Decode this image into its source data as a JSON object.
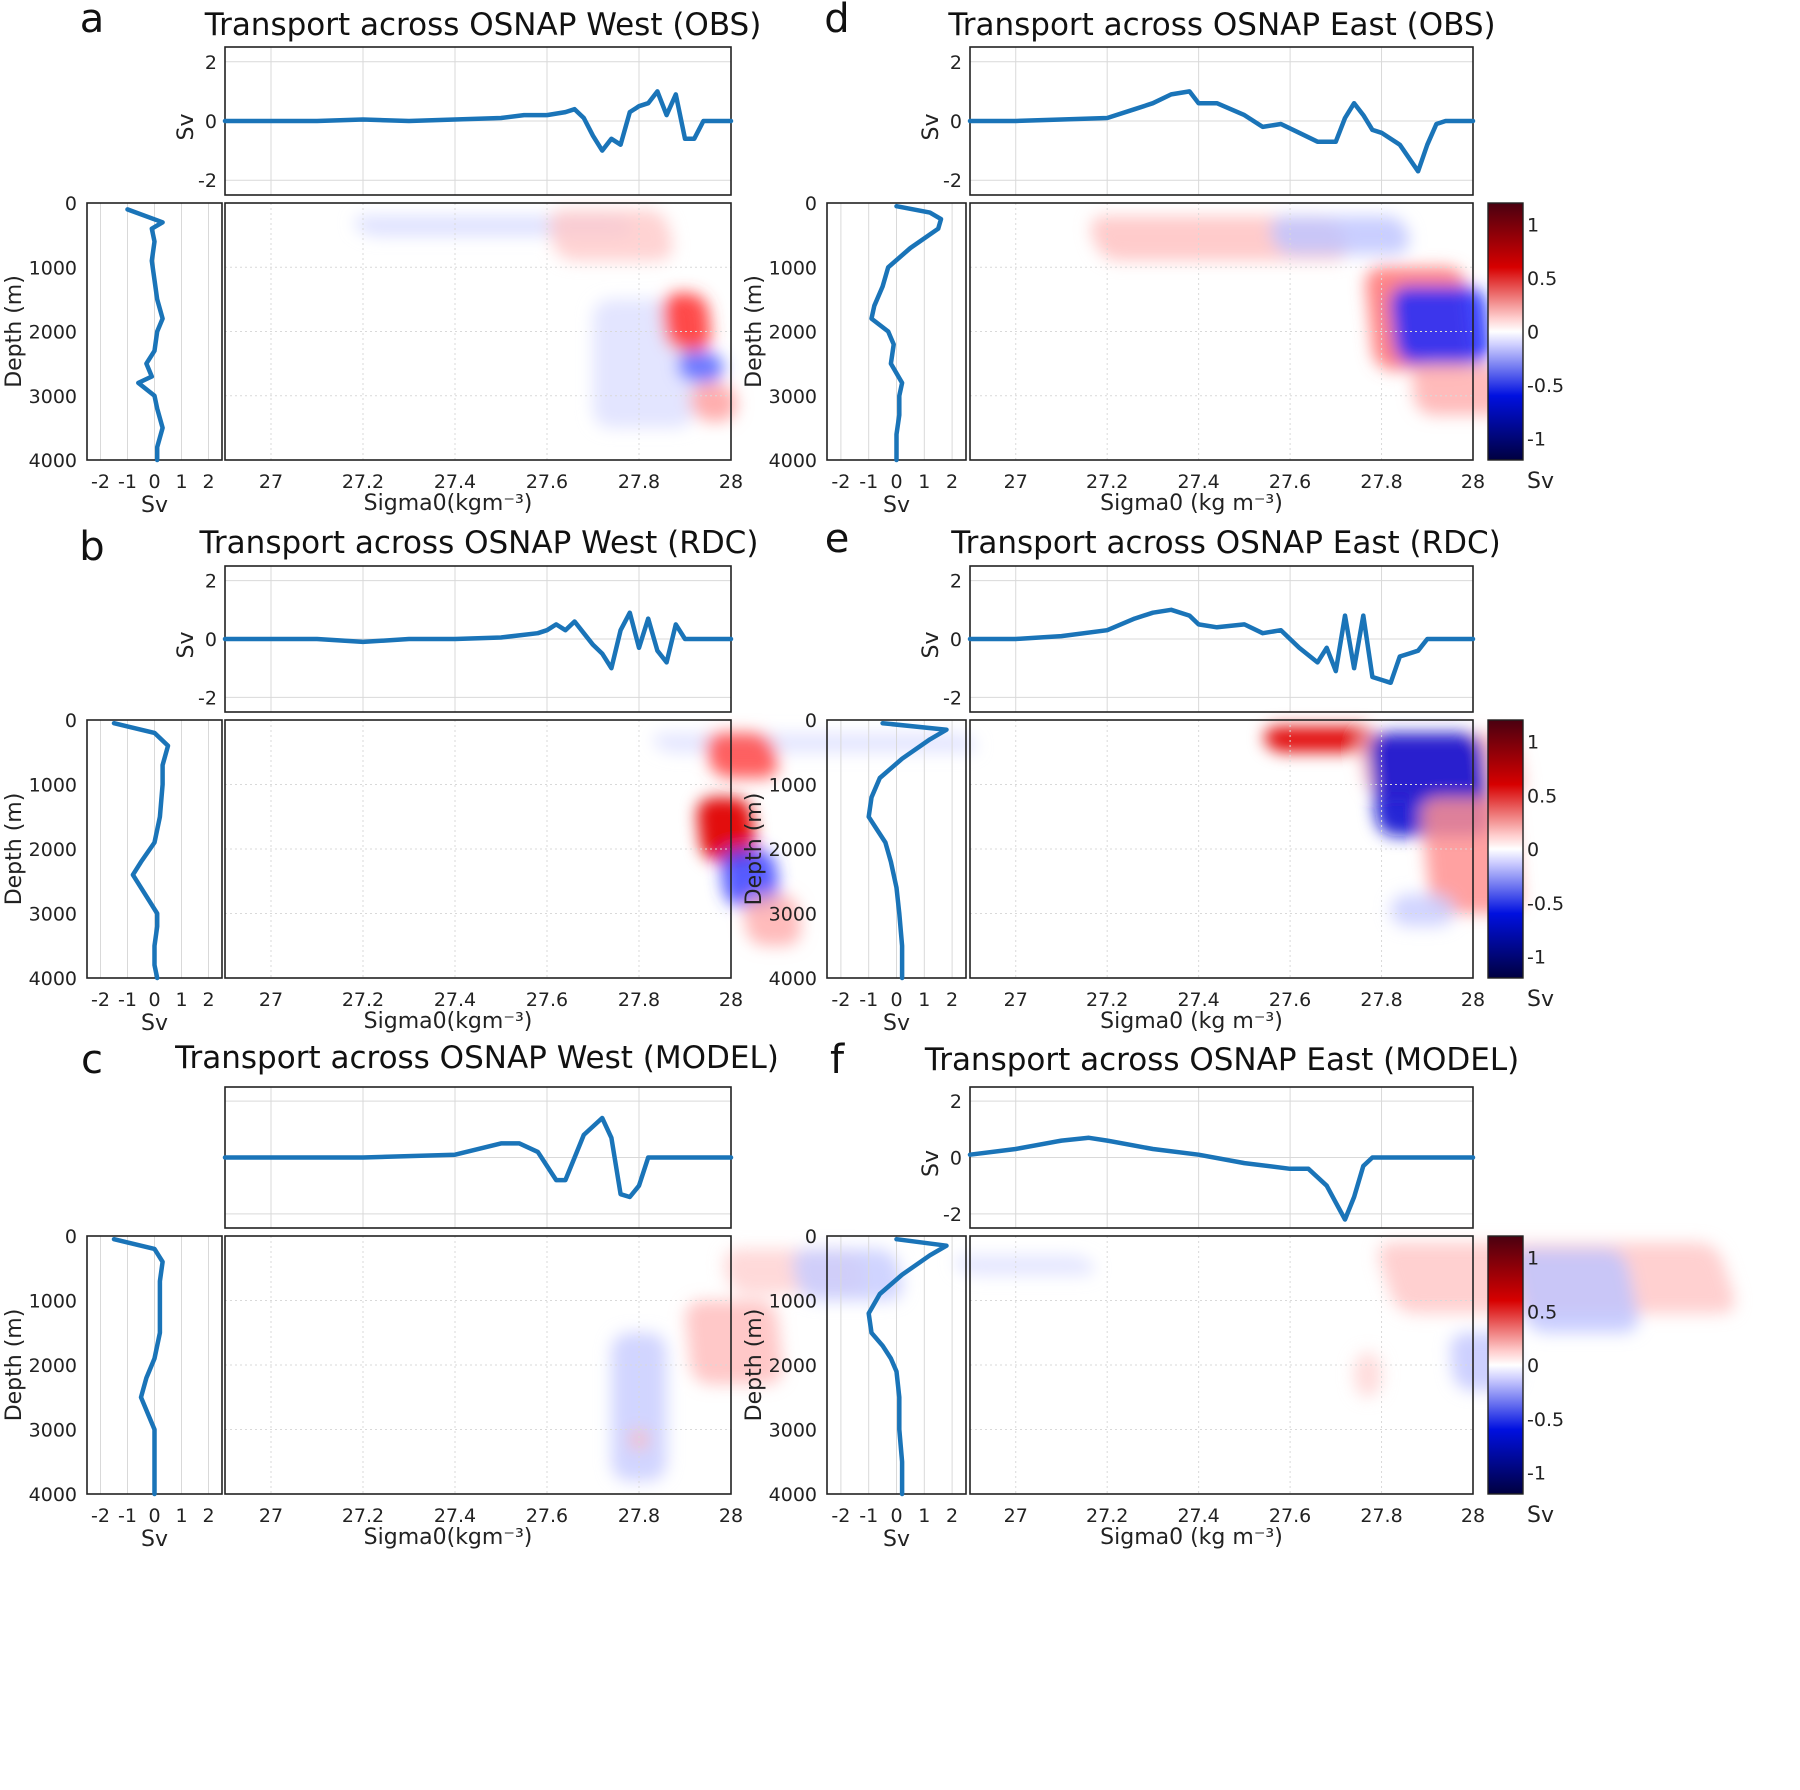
{
  "chart_data": [
    {
      "panel": "a",
      "title": "Transport across OSNAP West (OBS)",
      "type": "line",
      "top_ylabel": "Sv",
      "top_ylim": [
        -2.5,
        2.5
      ],
      "top_yticks": [
        "2",
        "0",
        "-2"
      ],
      "sigma": [
        26.9,
        27.0,
        27.1,
        27.2,
        27.3,
        27.4,
        27.5,
        27.55,
        27.6,
        27.64,
        27.66,
        27.68,
        27.7,
        27.72,
        27.74,
        27.76,
        27.78,
        27.8,
        27.82,
        27.84,
        27.86,
        27.88,
        27.9,
        27.92,
        27.94,
        28.0
      ],
      "transport": [
        0,
        0,
        0,
        0.05,
        0,
        0.05,
        0.1,
        0.2,
        0.2,
        0.3,
        0.4,
        0.1,
        -0.5,
        -1.0,
        -0.6,
        -0.8,
        0.3,
        0.5,
        0.6,
        1.0,
        0.2,
        0.9,
        -0.6,
        -0.6,
        0,
        0
      ],
      "left_xlabel": "Sv",
      "left_xlim": [
        -2.5,
        2.5
      ],
      "left_xticks": [
        "-2",
        "-1",
        "0",
        "1",
        "2"
      ],
      "left_ylabel": "Depth (m)",
      "depth_ylim": [
        0,
        4000
      ],
      "depth_ticks": [
        "0",
        "1000",
        "2000",
        "3000",
        "4000"
      ],
      "depth": [
        100,
        300,
        400,
        600,
        900,
        1200,
        1500,
        1800,
        2000,
        2300,
        2500,
        2700,
        2800,
        3000,
        3200,
        3500,
        3800,
        4000
      ],
      "depth_transport": [
        -1.0,
        0.3,
        -0.1,
        0.0,
        -0.1,
        0.0,
        0.1,
        0.3,
        0.1,
        0.0,
        -0.3,
        -0.1,
        -0.6,
        0.0,
        0.1,
        0.3,
        0.1,
        0.1
      ],
      "xlabel": "Sigma0(kgm⁻³)",
      "xlim": [
        26.9,
        28.0
      ],
      "xticks": [
        "27",
        "27.2",
        "27.4",
        "27.6",
        "27.8",
        "28"
      ],
      "has_colorbar": false
    },
    {
      "panel": "b",
      "title": "Transport across OSNAP West (RDC)",
      "type": "line",
      "top_ylabel": "Sv",
      "top_ylim": [
        -2.5,
        2.5
      ],
      "top_yticks": [
        "2",
        "0",
        "-2"
      ],
      "sigma": [
        26.9,
        27.0,
        27.1,
        27.2,
        27.3,
        27.4,
        27.5,
        27.58,
        27.6,
        27.62,
        27.64,
        27.66,
        27.68,
        27.7,
        27.72,
        27.74,
        27.76,
        27.78,
        27.8,
        27.82,
        27.84,
        27.86,
        27.88,
        27.9,
        28.0
      ],
      "transport": [
        0,
        0,
        0,
        -0.1,
        0,
        0,
        0.05,
        0.2,
        0.3,
        0.5,
        0.3,
        0.6,
        0.2,
        -0.2,
        -0.5,
        -1.0,
        0.3,
        0.9,
        -0.3,
        0.7,
        -0.4,
        -0.8,
        0.5,
        0,
        0
      ],
      "left_xlabel": "Sv",
      "left_xlim": [
        -2.5,
        2.5
      ],
      "left_xticks": [
        "-2",
        "-1",
        "0",
        "1",
        "2"
      ],
      "left_ylabel": "Depth (m)",
      "depth_ylim": [
        0,
        4000
      ],
      "depth_ticks": [
        "0",
        "1000",
        "2000",
        "3000",
        "4000"
      ],
      "depth": [
        50,
        200,
        400,
        700,
        1000,
        1500,
        1900,
        2200,
        2400,
        2600,
        2800,
        3000,
        3200,
        3500,
        3800,
        4000
      ],
      "depth_transport": [
        -1.5,
        0.0,
        0.5,
        0.3,
        0.3,
        0.2,
        0.0,
        -0.5,
        -0.8,
        -0.5,
        -0.2,
        0.1,
        0.1,
        0.0,
        0.0,
        0.1
      ],
      "xlabel": "Sigma0(kgm⁻³)",
      "xlim": [
        26.9,
        28.0
      ],
      "xticks": [
        "27",
        "27.2",
        "27.4",
        "27.6",
        "27.8",
        "28"
      ],
      "has_colorbar": false
    },
    {
      "panel": "c",
      "title": "Transport across OSNAP West (MODEL)",
      "type": "line",
      "top_ylabel": "",
      "top_ylim": [
        -2.5,
        2.5
      ],
      "top_yticks": [],
      "sigma": [
        26.9,
        27.0,
        27.2,
        27.4,
        27.5,
        27.54,
        27.58,
        27.62,
        27.64,
        27.68,
        27.72,
        27.74,
        27.76,
        27.78,
        27.8,
        27.82,
        27.84,
        28.0
      ],
      "transport": [
        0,
        0,
        0,
        0.1,
        0.5,
        0.5,
        0.2,
        -0.8,
        -0.8,
        0.8,
        1.4,
        0.7,
        -1.3,
        -1.4,
        -1.0,
        0,
        0,
        0
      ],
      "left_xlabel": "Sv",
      "left_xlim": [
        -2.5,
        2.5
      ],
      "left_xticks": [
        "-2",
        "-1",
        "0",
        "1",
        "2"
      ],
      "left_ylabel": "Depth (m)",
      "depth_ylim": [
        0,
        4000
      ],
      "depth_ticks": [
        "0",
        "1000",
        "2000",
        "3000",
        "4000"
      ],
      "depth": [
        50,
        200,
        400,
        700,
        1000,
        1500,
        1900,
        2200,
        2500,
        2800,
        3000,
        3200,
        3500,
        3800,
        4000
      ],
      "depth_transport": [
        -1.5,
        0.0,
        0.3,
        0.2,
        0.2,
        0.2,
        0.0,
        -0.3,
        -0.5,
        -0.2,
        0.0,
        0.0,
        0.0,
        0.0,
        0.0
      ],
      "xlabel": "Sigma0(kgm⁻³)",
      "xlim": [
        26.9,
        28.0
      ],
      "xticks": [
        "27",
        "27.2",
        "27.4",
        "27.6",
        "27.8",
        "28"
      ],
      "has_colorbar": false
    },
    {
      "panel": "d",
      "title": "Transport across OSNAP East (OBS)",
      "type": "line",
      "top_ylabel": "Sv",
      "top_ylim": [
        -2.5,
        2.5
      ],
      "top_yticks": [
        "2",
        "0",
        "-2"
      ],
      "sigma": [
        26.9,
        27.0,
        27.1,
        27.2,
        27.26,
        27.3,
        27.34,
        27.38,
        27.4,
        27.44,
        27.5,
        27.54,
        27.58,
        27.62,
        27.66,
        27.7,
        27.72,
        27.74,
        27.76,
        27.78,
        27.8,
        27.84,
        27.88,
        27.9,
        27.92,
        27.94,
        28.0
      ],
      "transport": [
        0,
        0,
        0.05,
        0.1,
        0.4,
        0.6,
        0.9,
        1.0,
        0.6,
        0.6,
        0.2,
        -0.2,
        -0.1,
        -0.4,
        -0.7,
        -0.7,
        0.1,
        0.6,
        0.2,
        -0.3,
        -0.4,
        -0.8,
        -1.7,
        -0.8,
        -0.1,
        0,
        0
      ],
      "left_xlabel": "Sv",
      "left_xlim": [
        -2.5,
        2.5
      ],
      "left_xticks": [
        "-2",
        "-1",
        "0",
        "1",
        "2"
      ],
      "left_ylabel": "Depth (m)",
      "depth_ylim": [
        0,
        4000
      ],
      "depth_ticks": [
        "0",
        "1000",
        "2000",
        "3000",
        "4000"
      ],
      "depth": [
        50,
        150,
        250,
        400,
        700,
        1000,
        1300,
        1600,
        1800,
        2000,
        2200,
        2500,
        2800,
        3000,
        3300,
        3600,
        4000
      ],
      "depth_transport": [
        0.0,
        1.2,
        1.6,
        1.5,
        0.5,
        -0.3,
        -0.5,
        -0.8,
        -0.9,
        -0.3,
        -0.1,
        -0.2,
        0.2,
        0.1,
        0.1,
        0.0,
        0.0
      ],
      "xlabel": "Sigma0 (kg m⁻³)",
      "xlim": [
        26.9,
        28.0
      ],
      "xticks": [
        "27",
        "27.2",
        "27.4",
        "27.6",
        "27.8",
        "28"
      ],
      "has_colorbar": true
    },
    {
      "panel": "e",
      "title": "Transport across OSNAP East (RDC)",
      "type": "line",
      "top_ylabel": "Sv",
      "top_ylim": [
        -2.5,
        2.5
      ],
      "top_yticks": [
        "2",
        "0",
        "-2"
      ],
      "sigma": [
        26.9,
        27.0,
        27.1,
        27.2,
        27.26,
        27.3,
        27.34,
        27.38,
        27.4,
        27.44,
        27.5,
        27.54,
        27.58,
        27.62,
        27.66,
        27.68,
        27.7,
        27.72,
        27.74,
        27.76,
        27.78,
        27.8,
        27.82,
        27.84,
        27.86,
        27.88,
        27.9,
        27.92,
        28.0
      ],
      "transport": [
        0,
        0,
        0.1,
        0.3,
        0.7,
        0.9,
        1.0,
        0.8,
        0.5,
        0.4,
        0.5,
        0.2,
        0.3,
        -0.3,
        -0.8,
        -0.3,
        -1.1,
        0.8,
        -1.0,
        0.8,
        -1.3,
        -1.4,
        -1.5,
        -0.6,
        -0.5,
        -0.4,
        0,
        0,
        0
      ],
      "left_xlabel": "Sv",
      "left_xlim": [
        -2.5,
        2.5
      ],
      "left_xticks": [
        "-2",
        "-1",
        "0",
        "1",
        "2"
      ],
      "left_ylabel": "Depth (m)",
      "depth_ylim": [
        0,
        4000
      ],
      "depth_ticks": [
        "0",
        "1000",
        "2000",
        "3000",
        "4000"
      ],
      "depth": [
        50,
        150,
        300,
        600,
        900,
        1200,
        1500,
        1700,
        1900,
        2200,
        2600,
        3000,
        3500,
        4000
      ],
      "depth_transport": [
        -0.5,
        1.8,
        1.2,
        0.2,
        -0.6,
        -0.9,
        -1.0,
        -0.7,
        -0.4,
        -0.2,
        0.0,
        0.1,
        0.2,
        0.2
      ],
      "xlabel": "Sigma0 (kg m⁻³)",
      "xlim": [
        26.9,
        28.0
      ],
      "xticks": [
        "27",
        "27.2",
        "27.4",
        "27.6",
        "27.8",
        "28"
      ],
      "has_colorbar": true
    },
    {
      "panel": "f",
      "title": "Transport across OSNAP East (MODEL)",
      "type": "line",
      "top_ylabel": "Sv",
      "top_ylim": [
        -2.5,
        2.5
      ],
      "top_yticks": [
        "2",
        "0",
        "-2"
      ],
      "sigma": [
        26.9,
        27.0,
        27.1,
        27.16,
        27.2,
        27.3,
        27.4,
        27.5,
        27.6,
        27.64,
        27.68,
        27.7,
        27.72,
        27.74,
        27.76,
        27.78,
        27.8,
        27.85,
        27.9,
        28.0
      ],
      "transport": [
        0.1,
        0.3,
        0.6,
        0.7,
        0.6,
        0.3,
        0.1,
        -0.2,
        -0.4,
        -0.4,
        -1.0,
        -1.6,
        -2.2,
        -1.4,
        -0.3,
        0,
        0,
        0,
        0,
        0
      ],
      "left_xlabel": "Sv",
      "left_xlim": [
        -2.5,
        2.5
      ],
      "left_xticks": [
        "-2",
        "-1",
        "0",
        "1",
        "2"
      ],
      "left_ylabel": "Depth (m)",
      "depth_ylim": [
        0,
        4000
      ],
      "depth_ticks": [
        "0",
        "1000",
        "2000",
        "3000",
        "4000"
      ],
      "depth": [
        50,
        150,
        300,
        600,
        900,
        1200,
        1500,
        1700,
        1900,
        2100,
        2500,
        3000,
        3500,
        4000
      ],
      "depth_transport": [
        0.0,
        1.8,
        1.2,
        0.2,
        -0.6,
        -1.0,
        -0.9,
        -0.5,
        -0.2,
        0.0,
        0.1,
        0.1,
        0.2,
        0.2
      ],
      "xlabel": "Sigma0 (kg m⁻³)",
      "xlim": [
        26.9,
        28.0
      ],
      "xticks": [
        "27",
        "27.2",
        "27.4",
        "27.6",
        "27.8",
        "28"
      ],
      "has_colorbar": true
    }
  ],
  "colorbar": {
    "ticks": [
      "1",
      "0.5",
      "0",
      "-0.5",
      "-1"
    ],
    "label": "Sv",
    "colors": [
      "#4a0010",
      "#d70000",
      "#ffffff",
      "#0010e0",
      "#000040"
    ]
  },
  "curve_color": "#1a74b8"
}
